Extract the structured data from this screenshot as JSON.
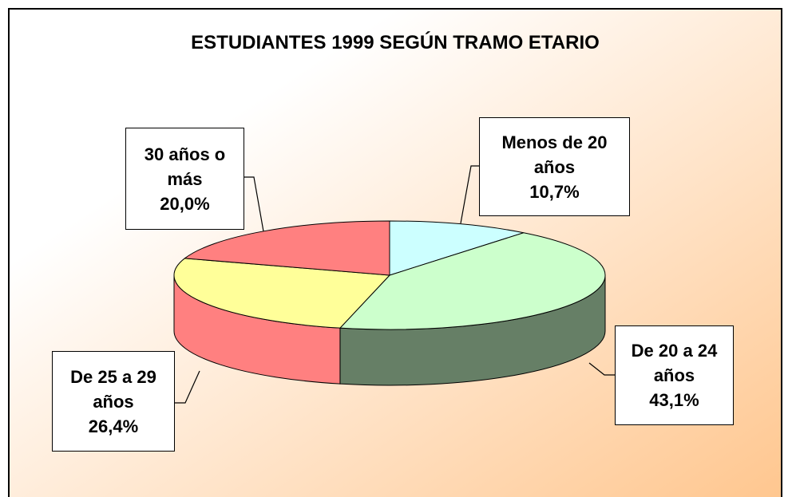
{
  "chart_data": {
    "type": "pie3d",
    "title": "ESTUDIANTES 1999 SEGÚN TRAMO ETARIO",
    "categories": [
      "Menos de 20 años",
      "De 20 a 24 años",
      "De 25 a 29 años",
      "30 años o más"
    ],
    "values": [
      10.7,
      43.1,
      26.4,
      20.0
    ],
    "value_labels": [
      "10,7%",
      "43,1%",
      "26,4%",
      "20,0%"
    ],
    "colors": [
      "#ccffff",
      "#ccffcc",
      "#ffff99",
      "#ff8080"
    ],
    "side_colors": [
      "#99cccc",
      "#667f66",
      "#ff8080",
      "#ff8080"
    ]
  }
}
